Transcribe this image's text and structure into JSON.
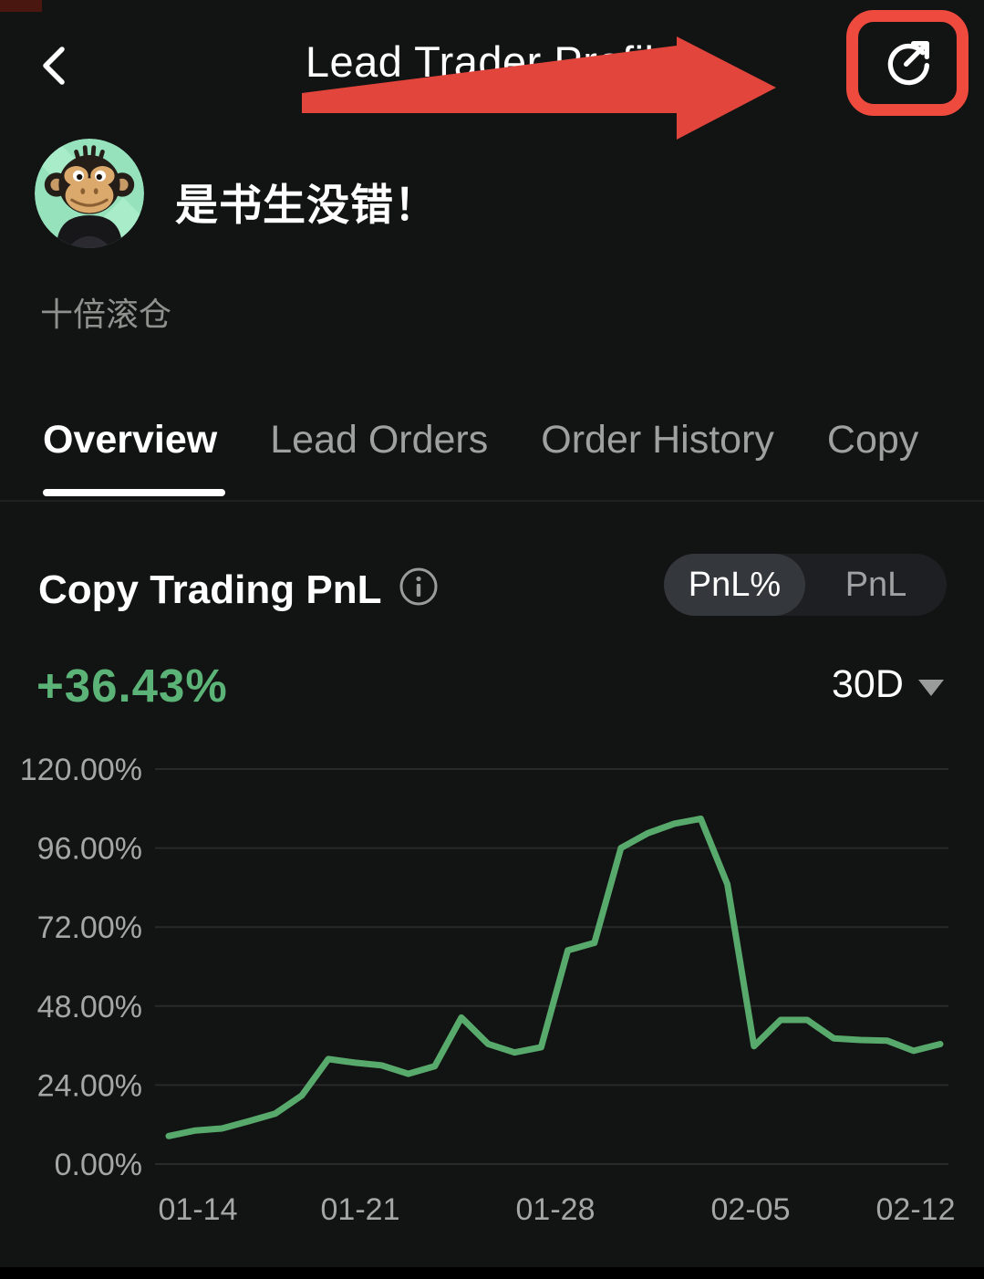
{
  "header": {
    "title": "Lead Trader Profile"
  },
  "annotation": {
    "arrow_color": "#e2453c",
    "highlight_box_color": "#ee4a3e"
  },
  "profile": {
    "name": "是书生没错！",
    "tag": "十倍滚仓"
  },
  "tabs": [
    {
      "label": "Overview",
      "active": true
    },
    {
      "label": "Lead Orders",
      "active": false
    },
    {
      "label": "Order History",
      "active": false
    },
    {
      "label": "Copy",
      "active": false
    }
  ],
  "pnl_section": {
    "title": "Copy Trading PnL",
    "toggle": [
      {
        "label": "PnL%",
        "active": true
      },
      {
        "label": "PnL",
        "active": false
      }
    ],
    "value": "+36.43%",
    "range": "30D"
  },
  "chart_data": {
    "type": "line",
    "title": "Copy Trading PnL (30D)",
    "x": [
      "01-14",
      "01-15",
      "01-16",
      "01-17",
      "01-18",
      "01-19",
      "01-20",
      "01-21",
      "01-22",
      "01-23",
      "01-24",
      "01-25",
      "01-26",
      "01-27",
      "01-28",
      "01-29",
      "01-30",
      "01-31",
      "02-01",
      "02-02",
      "02-03",
      "02-04",
      "02-05",
      "02-06",
      "02-07",
      "02-08",
      "02-09",
      "02-10",
      "02-11",
      "02-12"
    ],
    "values": [
      8.5,
      10.2,
      10.8,
      13.0,
      15.3,
      20.8,
      31.9,
      30.8,
      30.0,
      27.4,
      29.7,
      44.5,
      36.5,
      33.9,
      35.5,
      64.9,
      67.2,
      96.0,
      100.5,
      103.4,
      104.9,
      85.0,
      35.8,
      43.8,
      43.8,
      38.2,
      37.7,
      37.5,
      34.4,
      36.43
    ],
    "ylim": [
      0,
      120
    ],
    "y_ticks": [
      120,
      96,
      72,
      48,
      24,
      0
    ],
    "y_tick_labels": [
      "120.00%",
      "96.00%",
      "72.00%",
      "48.00%",
      "24.00%",
      "0.00%"
    ],
    "x_axis_labels": [
      "01-14",
      "01-21",
      "01-28",
      "02-05",
      "02-12"
    ],
    "line_color": "#58aa6c",
    "grid": "horizontal",
    "legend": "none"
  }
}
